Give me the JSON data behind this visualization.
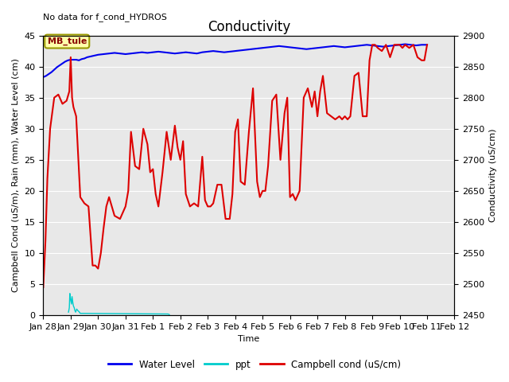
{
  "title": "Conductivity",
  "top_left_text": "No data for f_cond_HYDROS",
  "ylabel_left": "Campbell Cond (uS/m), Rain (mm), Water Level (cm)",
  "ylabel_right": "Conductivity (uS/cm)",
  "xlabel": "Time",
  "ylim_left": [
    0,
    45
  ],
  "ylim_right": [
    2450,
    2900
  ],
  "plot_bg_color": "#e8e8e8",
  "box_label": "MB_tule",
  "x_tick_labels": [
    "Jan 28",
    "Jan 29",
    "Jan 30",
    "Jan 31",
    "Feb 1",
    "Feb 2",
    "Feb 3",
    "Feb 4",
    "Feb 5",
    "Feb 6",
    "Feb 7",
    "Feb 8",
    "Feb 9",
    "Feb 10",
    "Feb 11",
    "Feb 12"
  ],
  "water_level_color": "#0000ee",
  "ppt_color": "#00cccc",
  "campbell_color": "#dd0000",
  "grid_color": "#ffffff",
  "title_fontsize": 12,
  "label_fontsize": 8,
  "tick_fontsize": 8,
  "water_level_x": [
    0.0,
    0.1,
    0.2,
    0.3,
    0.4,
    0.5,
    0.6,
    0.7,
    0.8,
    0.9,
    1.0,
    1.1,
    1.2,
    1.3,
    1.4,
    1.5,
    1.6,
    1.7,
    1.8,
    1.9,
    2.0,
    2.2,
    2.4,
    2.6,
    2.8,
    3.0,
    3.2,
    3.4,
    3.6,
    3.8,
    4.0,
    4.2,
    4.4,
    4.6,
    4.8,
    5.0,
    5.2,
    5.4,
    5.6,
    5.8,
    6.0,
    6.2,
    6.4,
    6.6,
    6.8,
    7.0,
    7.2,
    7.4,
    7.6,
    7.8,
    8.0,
    8.2,
    8.4,
    8.6,
    8.8,
    9.0,
    9.2,
    9.4,
    9.6,
    9.8,
    10.0,
    10.2,
    10.4,
    10.6,
    10.8,
    11.0,
    11.2,
    11.4,
    11.6,
    11.8,
    12.0,
    12.2,
    12.4,
    12.6,
    12.8,
    13.0,
    13.2,
    13.4,
    13.6,
    13.8,
    14.0
  ],
  "water_level_y": [
    38.3,
    38.5,
    38.8,
    39.1,
    39.5,
    39.9,
    40.2,
    40.5,
    40.8,
    41.0,
    41.1,
    41.1,
    41.1,
    41.0,
    41.2,
    41.3,
    41.5,
    41.6,
    41.7,
    41.8,
    41.9,
    42.0,
    42.1,
    42.2,
    42.1,
    42.0,
    42.1,
    42.2,
    42.3,
    42.2,
    42.3,
    42.4,
    42.3,
    42.2,
    42.1,
    42.2,
    42.3,
    42.2,
    42.1,
    42.3,
    42.4,
    42.5,
    42.4,
    42.3,
    42.4,
    42.5,
    42.6,
    42.7,
    42.8,
    42.9,
    43.0,
    43.1,
    43.2,
    43.3,
    43.2,
    43.1,
    43.0,
    42.9,
    42.8,
    42.9,
    43.0,
    43.1,
    43.2,
    43.3,
    43.2,
    43.1,
    43.2,
    43.3,
    43.4,
    43.5,
    43.4,
    43.3,
    43.2,
    43.3,
    43.4,
    43.5,
    43.6,
    43.5,
    43.4,
    43.5,
    43.5
  ],
  "ppt_x": [
    0.92,
    0.95,
    0.97,
    1.0,
    1.03,
    1.05,
    1.08,
    1.1,
    1.13,
    1.15,
    1.18,
    1.22,
    1.25,
    1.3,
    1.35,
    4.55,
    4.6
  ],
  "ppt_y": [
    0.5,
    1.2,
    3.5,
    2.5,
    1.8,
    3.0,
    2.0,
    1.5,
    1.2,
    0.8,
    0.5,
    1.0,
    0.8,
    0.6,
    0.3,
    0.2,
    0.1
  ],
  "campbell_x": [
    0.0,
    0.08,
    0.15,
    0.25,
    0.4,
    0.55,
    0.7,
    0.85,
    0.95,
    1.0,
    1.05,
    1.1,
    1.2,
    1.35,
    1.5,
    1.65,
    1.8,
    1.9,
    2.0,
    2.1,
    2.2,
    2.3,
    2.4,
    2.6,
    2.8,
    3.0,
    3.1,
    3.2,
    3.35,
    3.5,
    3.65,
    3.8,
    3.9,
    4.0,
    4.1,
    4.2,
    4.35,
    4.5,
    4.65,
    4.8,
    4.9,
    5.0,
    5.1,
    5.2,
    5.35,
    5.5,
    5.65,
    5.8,
    5.9,
    6.0,
    6.1,
    6.2,
    6.35,
    6.5,
    6.65,
    6.8,
    6.9,
    7.0,
    7.1,
    7.2,
    7.35,
    7.5,
    7.65,
    7.8,
    7.9,
    8.0,
    8.1,
    8.2,
    8.35,
    8.5,
    8.65,
    8.8,
    8.9,
    9.0,
    9.1,
    9.2,
    9.35,
    9.5,
    9.65,
    9.8,
    9.9,
    10.0,
    10.1,
    10.2,
    10.35,
    10.5,
    10.65,
    10.8,
    10.9,
    11.0,
    11.1,
    11.2,
    11.35,
    11.5,
    11.65,
    11.8,
    11.9,
    12.0,
    12.1,
    12.2,
    12.35,
    12.5,
    12.65,
    12.8,
    12.9,
    13.0,
    13.1,
    13.2,
    13.35,
    13.5,
    13.65,
    13.8,
    13.9,
    14.0
  ],
  "campbell_y": [
    4.5,
    12.0,
    22.0,
    30.0,
    35.0,
    35.5,
    34.0,
    34.5,
    36.0,
    41.5,
    35.0,
    33.5,
    32.0,
    19.0,
    18.0,
    17.5,
    8.0,
    8.0,
    7.5,
    10.0,
    14.0,
    17.5,
    19.0,
    16.0,
    15.5,
    17.5,
    20.0,
    29.5,
    24.0,
    23.5,
    30.0,
    27.5,
    23.0,
    23.5,
    19.5,
    17.5,
    23.0,
    29.5,
    25.0,
    30.5,
    27.0,
    25.0,
    28.0,
    19.5,
    17.5,
    18.0,
    17.5,
    25.5,
    18.5,
    17.5,
    17.5,
    18.0,
    21.0,
    21.0,
    15.5,
    15.5,
    19.5,
    29.5,
    31.5,
    21.5,
    21.0,
    29.5,
    36.5,
    21.5,
    19.0,
    20.0,
    20.0,
    24.0,
    34.5,
    35.5,
    25.0,
    32.5,
    35.0,
    19.0,
    19.5,
    18.5,
    20.0,
    35.0,
    36.5,
    33.5,
    36.0,
    32.0,
    36.0,
    38.5,
    32.5,
    32.0,
    31.5,
    32.0,
    31.5,
    32.0,
    31.5,
    32.0,
    38.5,
    39.0,
    32.0,
    32.0,
    41.0,
    43.5,
    43.5,
    43.0,
    42.5,
    43.5,
    41.5,
    43.5,
    43.5,
    43.5,
    43.0,
    43.5,
    43.0,
    43.5,
    41.5,
    41.0,
    41.0,
    43.5
  ]
}
